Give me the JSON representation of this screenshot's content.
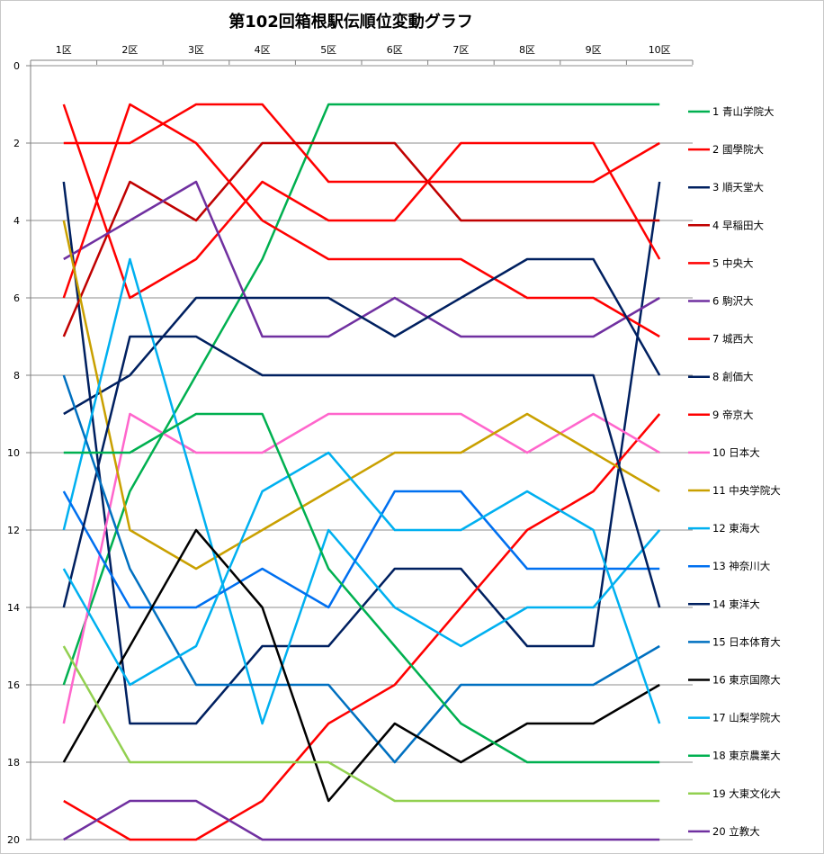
{
  "chart_data": {
    "type": "line",
    "title": "第102回箱根駅伝順位変動グラフ",
    "xlabel": "",
    "ylabel": "",
    "categories": [
      "1区",
      "2区",
      "3区",
      "4区",
      "5区",
      "6区",
      "7区",
      "8区",
      "9区",
      "10区"
    ],
    "y_ticks": [
      "0",
      "2",
      "4",
      "6",
      "8",
      "10",
      "12",
      "14",
      "16",
      "18",
      "20"
    ],
    "ylim": [
      0,
      20
    ],
    "y_reversed": true,
    "grid": "horizontal",
    "legend_position": "right",
    "series": [
      {
        "name": "1 青山学院大",
        "color": "#00b050",
        "values": [
          16,
          11,
          8,
          5,
          1,
          1,
          1,
          1,
          1,
          1
        ]
      },
      {
        "name": "2 國學院大",
        "color": "#ff0000",
        "values": [
          2,
          2,
          1,
          1,
          3,
          3,
          3,
          3,
          3,
          2
        ]
      },
      {
        "name": "3 順天堂大",
        "color": "#002060",
        "values": [
          3,
          17,
          17,
          15,
          15,
          13,
          13,
          15,
          15,
          3
        ]
      },
      {
        "name": "4 早稲田大",
        "color": "#c00000",
        "values": [
          7,
          3,
          4,
          2,
          2,
          2,
          4,
          4,
          4,
          4
        ]
      },
      {
        "name": "5 中央大",
        "color": "#ff0000",
        "values": [
          1,
          6,
          5,
          3,
          4,
          4,
          2,
          2,
          2,
          5
        ]
      },
      {
        "name": "6 駒沢大",
        "color": "#7030a0",
        "values": [
          5,
          4,
          3,
          7,
          7,
          6,
          7,
          7,
          7,
          6
        ]
      },
      {
        "name": "7 城西大",
        "color": "#ff0000",
        "values": [
          6,
          1,
          2,
          4,
          5,
          5,
          5,
          6,
          6,
          7
        ]
      },
      {
        "name": "8 創価大",
        "color": "#002060",
        "values": [
          9,
          8,
          6,
          6,
          6,
          7,
          6,
          5,
          5,
          8
        ]
      },
      {
        "name": "9 帝京大",
        "color": "#ff0000",
        "values": [
          19,
          20,
          20,
          19,
          17,
          16,
          14,
          12,
          11,
          9
        ]
      },
      {
        "name": "10 日本大",
        "color": "#ff66cc",
        "values": [
          17,
          9,
          10,
          10,
          9,
          9,
          9,
          10,
          9,
          10
        ]
      },
      {
        "name": "11 中央学院大",
        "color": "#c9a000",
        "values": [
          4,
          12,
          13,
          12,
          11,
          10,
          10,
          9,
          10,
          11
        ]
      },
      {
        "name": "12 東海大",
        "color": "#00b0f0",
        "values": [
          12,
          5,
          11,
          17,
          12,
          14,
          15,
          14,
          14,
          12
        ]
      },
      {
        "name": "13 神奈川大",
        "color": "#0070f0",
        "values": [
          11,
          14,
          14,
          13,
          14,
          11,
          11,
          13,
          13,
          13
        ]
      },
      {
        "name": "14 東洋大",
        "color": "#002060",
        "values": [
          14,
          7,
          7,
          8,
          8,
          8,
          8,
          8,
          8,
          14
        ]
      },
      {
        "name": "15 日本体育大",
        "color": "#0070c0",
        "values": [
          8,
          13,
          16,
          16,
          16,
          18,
          16,
          16,
          16,
          15
        ]
      },
      {
        "name": "16 東京国際大",
        "color": "#000000",
        "values": [
          18,
          15,
          12,
          14,
          19,
          17,
          18,
          17,
          17,
          16
        ]
      },
      {
        "name": "17 山梨学院大",
        "color": "#00b0f0",
        "values": [
          13,
          16,
          15,
          11,
          10,
          12,
          12,
          11,
          12,
          17
        ]
      },
      {
        "name": "18 東京農業大",
        "color": "#00b050",
        "values": [
          10,
          10,
          9,
          9,
          13,
          15,
          17,
          18,
          18,
          18
        ]
      },
      {
        "name": "19 大東文化大",
        "color": "#92d050",
        "values": [
          15,
          18,
          18,
          18,
          18,
          19,
          19,
          19,
          19,
          19
        ]
      },
      {
        "name": "20 立教大",
        "color": "#7030a0",
        "values": [
          20,
          19,
          19,
          20,
          20,
          20,
          20,
          20,
          20,
          20
        ]
      }
    ]
  }
}
